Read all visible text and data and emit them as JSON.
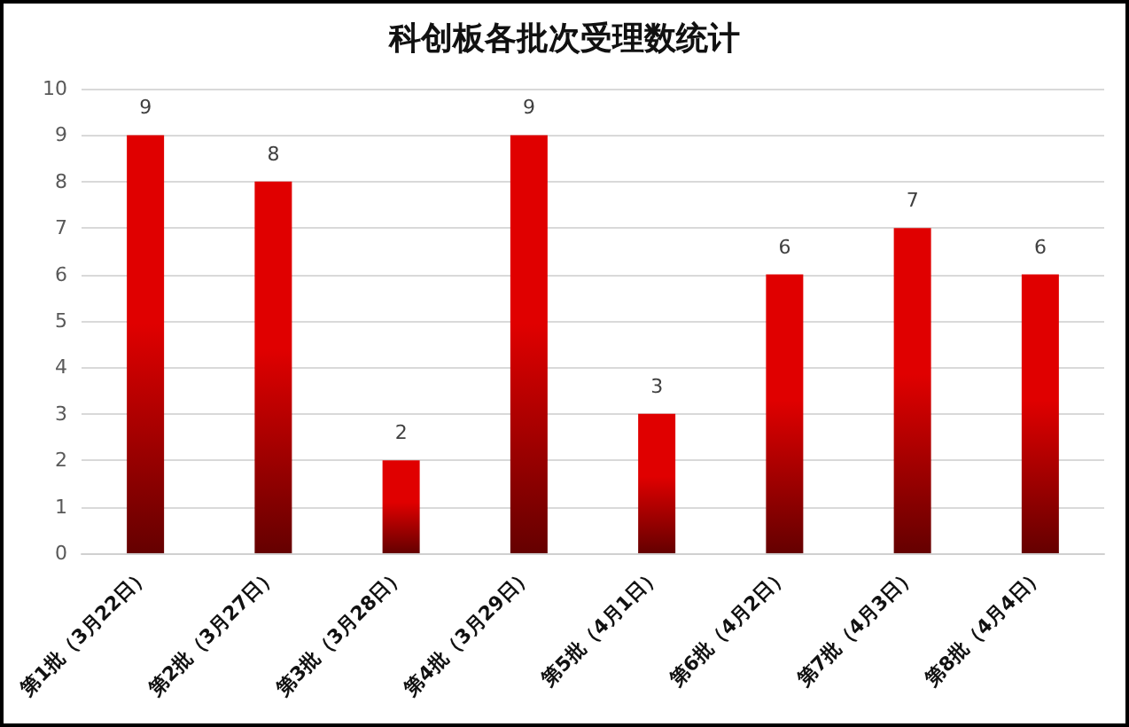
{
  "chart_data": {
    "type": "bar",
    "title": "科创板各批次受理数统计",
    "categories": [
      "第1批（3月22日）",
      "第2批（3月27日）",
      "第3批（3月28日）",
      "第4批（3月29日）",
      "第5批（4月1日）",
      "第6批（4月2日）",
      "第7批（4月3日）",
      "第8批（4月4日）"
    ],
    "values": [
      9,
      8,
      2,
      9,
      3,
      6,
      7,
      6
    ],
    "color": "#e00000",
    "ylim": [
      0,
      10
    ],
    "yticks": [
      0,
      1,
      2,
      3,
      4,
      5,
      6,
      7,
      8,
      9,
      10
    ],
    "grid": "y",
    "data_labels": true
  }
}
